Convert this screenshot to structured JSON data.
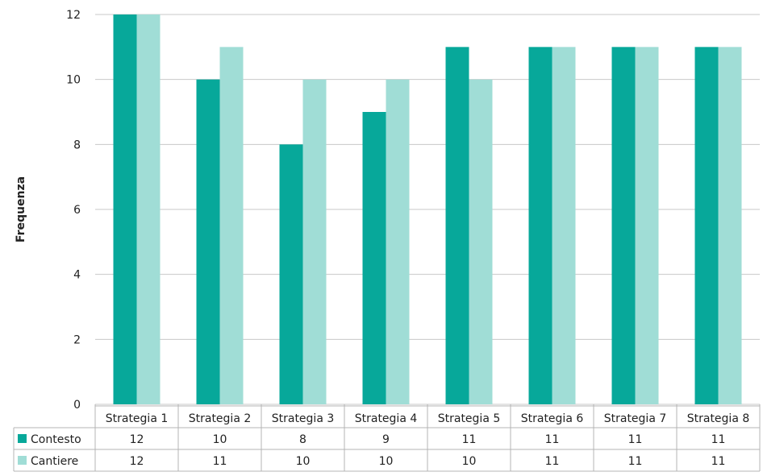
{
  "chart_data": {
    "type": "bar",
    "title": "",
    "xlabel": "",
    "ylabel": "Frequenza",
    "ylim": [
      0,
      12
    ],
    "yticks": [
      0,
      2,
      4,
      6,
      8,
      10,
      12
    ],
    "grid": true,
    "legend_placement": "data-table-left",
    "categories": [
      "Strategia 1",
      "Strategia 2",
      "Strategia 3",
      "Strategia 4",
      "Strategia 5",
      "Strategia 6",
      "Strategia 7",
      "Strategia 8"
    ],
    "series": [
      {
        "name": "Contesto",
        "values": [
          12,
          10,
          8,
          9,
          11,
          11,
          11,
          11
        ],
        "color": "#07a89a"
      },
      {
        "name": "Cantiere",
        "values": [
          12,
          11,
          10,
          10,
          10,
          11,
          11,
          11
        ],
        "color": "#a0ddd6"
      }
    ],
    "table_values": [
      [
        "12",
        "10",
        "8",
        "9",
        "11",
        "11",
        "11",
        "11"
      ],
      [
        "12",
        "11",
        "10",
        "10",
        "10",
        "11",
        "11",
        "11"
      ]
    ]
  }
}
